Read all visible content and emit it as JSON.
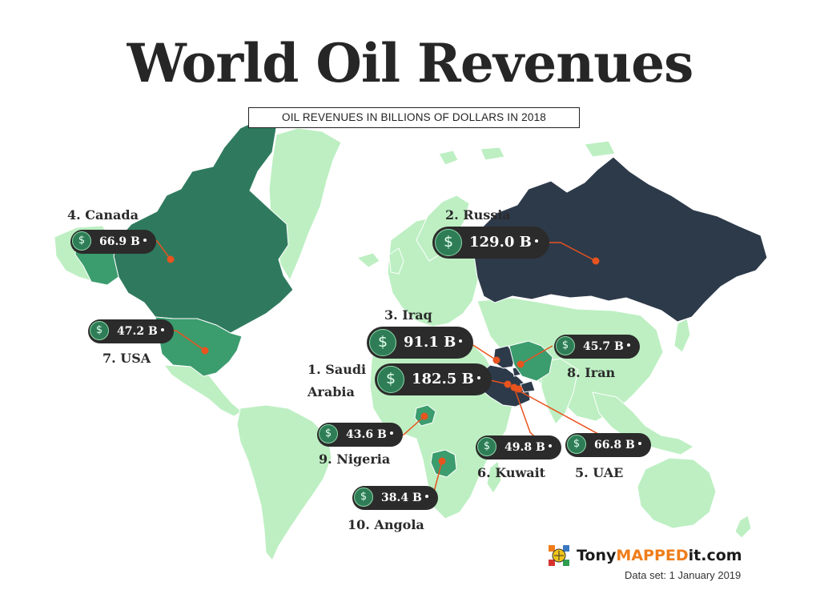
{
  "title": "World Oil Revenues",
  "subtitle": "OIL REVENUES IN BILLIONS OF DOLLARS IN 2018",
  "colors": {
    "land_default": "#bdefc2",
    "tier_high": "#2d3a4a",
    "tier_mid": "#2f7a5e",
    "tier_low": "#3b9c6e",
    "pill": "#2b2b2b",
    "connector": "#e8531e",
    "coin": "#2e7d57"
  },
  "countries": [
    {
      "rank_label": "1. Saudi",
      "rank_label2": "Arabia",
      "value": 182.5,
      "value_label": "182.5 B"
    },
    {
      "rank_label": "2. Russia",
      "value": 129.0,
      "value_label": "129.0 B"
    },
    {
      "rank_label": "3. Iraq",
      "value": 91.1,
      "value_label": "91.1 B"
    },
    {
      "rank_label": "4. Canada",
      "value": 66.9,
      "value_label": "66.9 B"
    },
    {
      "rank_label": "5. UAE",
      "value": 66.8,
      "value_label": "66.8 B"
    },
    {
      "rank_label": "6. Kuwait",
      "value": 49.8,
      "value_label": "49.8 B"
    },
    {
      "rank_label": "7. USA",
      "value": 47.2,
      "value_label": "47.2 B"
    },
    {
      "rank_label": "8. Iran",
      "value": 45.7,
      "value_label": "45.7 B"
    },
    {
      "rank_label": "9. Nigeria",
      "value": 43.6,
      "value_label": "43.6 B"
    },
    {
      "rank_label": "10. Angola",
      "value": 38.4,
      "value_label": "38.4 B"
    }
  ],
  "coin_icon": "dollar-coin-icon",
  "logo": {
    "part1": "Tony",
    "part2": "MAPPED",
    "part3": "it.com"
  },
  "dataset_note": "Data set: 1 January 2019"
}
